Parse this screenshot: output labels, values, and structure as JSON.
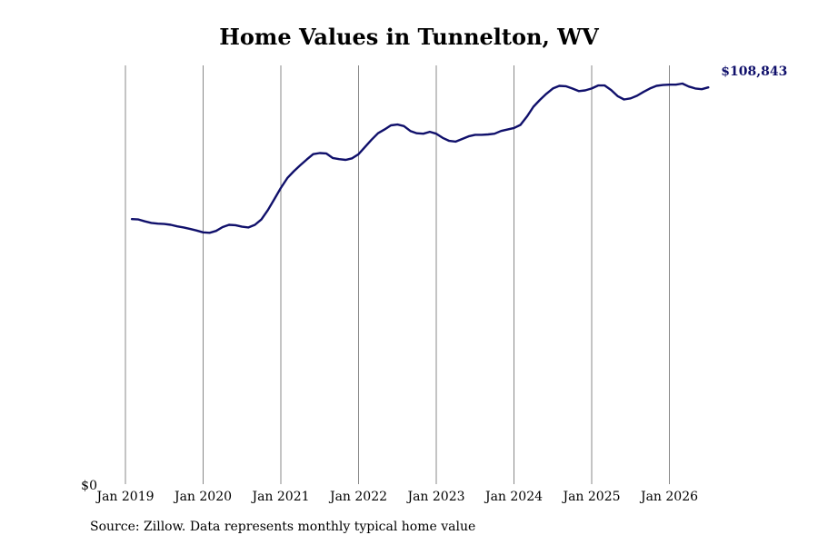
{
  "chart_data": {
    "type": "line",
    "title": "Home Values in Tunnelton, WV",
    "xlabel": "",
    "ylabel": "",
    "source_note": "Source: Zillow. Data represents monthly typical home value",
    "y_tick_label": "$0",
    "ylim": [
      0,
      108843
    ],
    "xlim": [
      "2019-01",
      "2026-07"
    ],
    "grid": "vertical",
    "x_ticks": [
      {
        "date": "2019-01",
        "label": "Jan 2019"
      },
      {
        "date": "2020-01",
        "label": "Jan 2020"
      },
      {
        "date": "2021-01",
        "label": "Jan 2021"
      },
      {
        "date": "2022-01",
        "label": "Jan 2022"
      },
      {
        "date": "2023-01",
        "label": "Jan 2023"
      },
      {
        "date": "2024-01",
        "label": "Jan 2024"
      },
      {
        "date": "2025-01",
        "label": "Jan 2025"
      },
      {
        "date": "2026-01",
        "label": "Jan 2026"
      }
    ],
    "end_label": "$108,843",
    "line_color": "#10106b",
    "series": [
      {
        "x": [
          "2019-02",
          "2019-03",
          "2019-04",
          "2019-05",
          "2019-06",
          "2019-07",
          "2019-08",
          "2019-09",
          "2019-10",
          "2019-11",
          "2019-12",
          "2020-01",
          "2020-02",
          "2020-03",
          "2020-04",
          "2020-05",
          "2020-06",
          "2020-07",
          "2020-08",
          "2020-09",
          "2020-10",
          "2020-11",
          "2020-12",
          "2021-01",
          "2021-02",
          "2021-03",
          "2021-04",
          "2021-05",
          "2021-06",
          "2021-07",
          "2021-08",
          "2021-09",
          "2021-10",
          "2021-11",
          "2021-12",
          "2022-01",
          "2022-02",
          "2022-03",
          "2022-04",
          "2022-05",
          "2022-06",
          "2022-07",
          "2022-08",
          "2022-09",
          "2022-10",
          "2022-11",
          "2022-12",
          "2023-01",
          "2023-02",
          "2023-03",
          "2023-04",
          "2023-05",
          "2023-06",
          "2023-07",
          "2023-08",
          "2023-09",
          "2023-10",
          "2023-11",
          "2023-12",
          "2024-01",
          "2024-02",
          "2024-03",
          "2024-04",
          "2024-05",
          "2024-06",
          "2024-07",
          "2024-08",
          "2024-09",
          "2024-10",
          "2024-11",
          "2024-12",
          "2025-01",
          "2025-02",
          "2025-03",
          "2025-04",
          "2025-05",
          "2025-06",
          "2025-07",
          "2025-08",
          "2025-09",
          "2025-10",
          "2025-11",
          "2025-12",
          "2026-01",
          "2026-02",
          "2026-03",
          "2026-04",
          "2026-05",
          "2026-06",
          "2026-07"
        ],
        "values": [
          69800,
          69700,
          69200,
          68800,
          68600,
          68500,
          68300,
          67900,
          67600,
          67200,
          66800,
          66300,
          66200,
          66700,
          67700,
          68300,
          68200,
          67800,
          67600,
          68300,
          69700,
          72200,
          75100,
          78000,
          80600,
          82400,
          84000,
          85500,
          86900,
          87200,
          87100,
          85900,
          85600,
          85400,
          85800,
          86900,
          88800,
          90700,
          92400,
          93400,
          94500,
          94700,
          94300,
          93000,
          92400,
          92300,
          92800,
          92300,
          91200,
          90400,
          90200,
          90900,
          91600,
          92000,
          92000,
          92100,
          92300,
          93000,
          93400,
          93800,
          94600,
          96800,
          99400,
          101200,
          102800,
          104200,
          104900,
          104800,
          104200,
          103500,
          103700,
          104200,
          105000,
          105000,
          103800,
          102200,
          101300,
          101600,
          102300,
          103300,
          104200,
          104900,
          105100,
          105200,
          105200,
          105500,
          104700,
          104200,
          104000,
          104500
        ]
      }
    ]
  }
}
